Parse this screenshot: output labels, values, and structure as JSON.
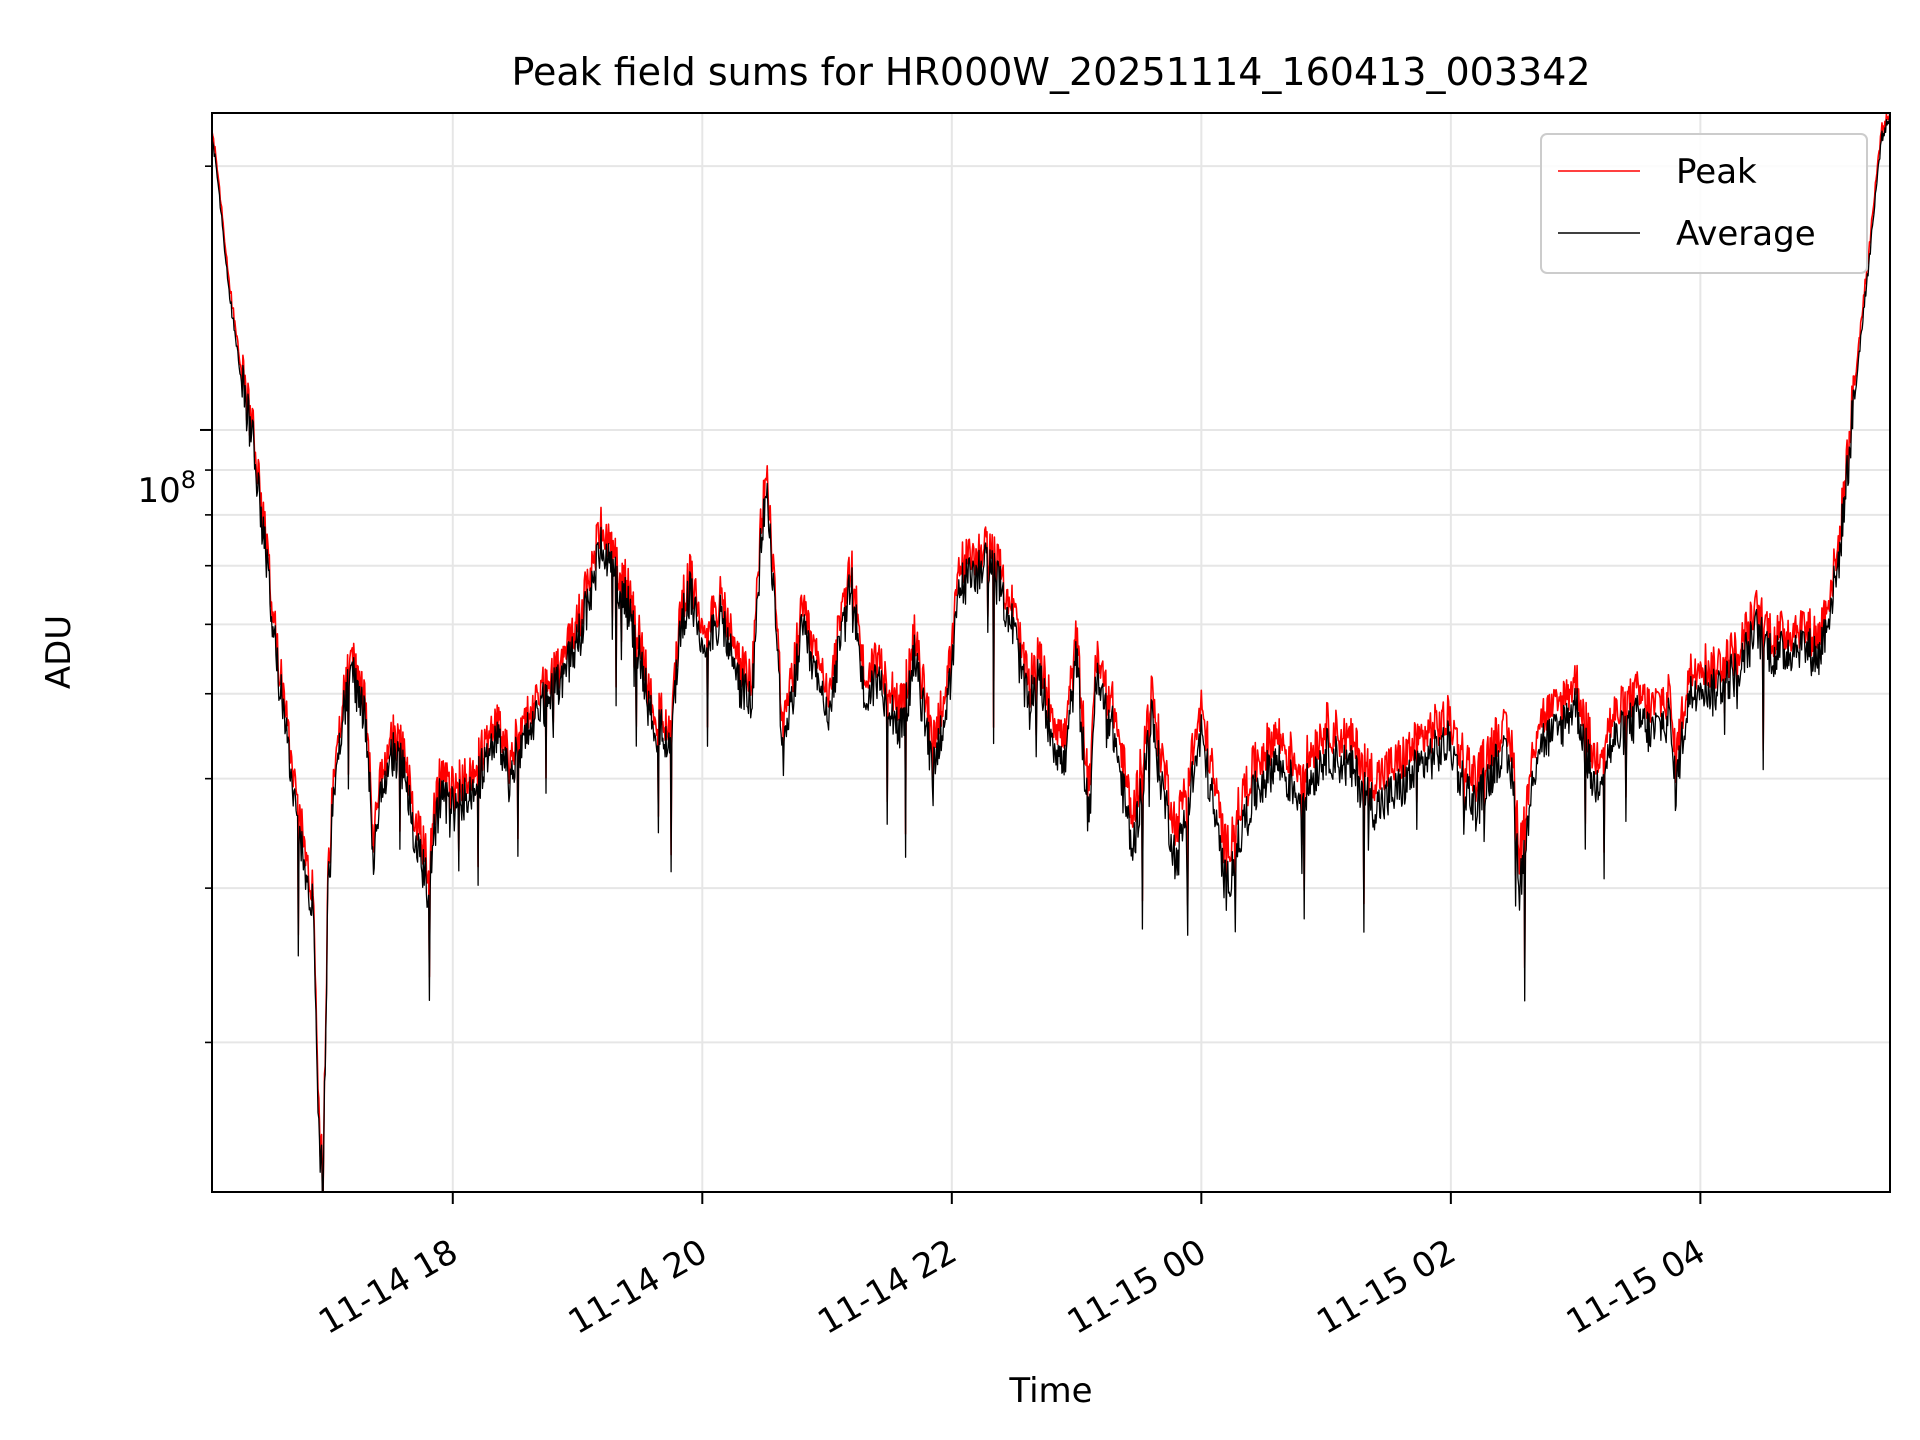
{
  "chart_data": {
    "type": "line",
    "title": "Peak field sums for HR000W_20251114_160413_003342",
    "xlabel": "Time",
    "ylabel": "ADU",
    "y_scale": "log",
    "ylim": [
      13500000,
      230000000
    ],
    "xlim_hours": [
      16.07,
      29.52
    ],
    "y_major_tick": {
      "value": 100000000,
      "label_base": "10",
      "label_exp": "8"
    },
    "y_minor_ticks": [
      20000000,
      30000000,
      40000000,
      50000000,
      60000000,
      70000000,
      80000000,
      90000000,
      200000000
    ],
    "x_ticks": [
      {
        "hour": 18,
        "label": "11-14 18"
      },
      {
        "hour": 20,
        "label": "11-14 20"
      },
      {
        "hour": 22,
        "label": "11-14 22"
      },
      {
        "hour": 24,
        "label": "11-15 00"
      },
      {
        "hour": 26,
        "label": "11-15 02"
      },
      {
        "hour": 28,
        "label": "11-15 04"
      }
    ],
    "grid": true,
    "legend_position": "top-right",
    "x_units": "hours since 11-14 00:00",
    "series": [
      {
        "name": "Peak",
        "color": "#ff0000",
        "x": [
          16.07,
          16.13,
          16.2,
          16.3,
          16.4,
          16.5,
          16.6,
          16.68,
          16.75,
          16.82,
          16.88,
          16.92,
          16.96,
          17.0,
          17.05,
          17.12,
          17.2,
          17.3,
          17.37,
          17.42,
          17.5,
          17.6,
          17.7,
          17.8,
          17.85,
          17.9,
          18.0,
          18.15,
          18.25,
          18.35,
          18.45,
          18.6,
          18.7,
          18.8,
          19.0,
          19.2,
          19.4,
          19.5,
          19.6,
          19.75,
          19.82,
          19.9,
          20.0,
          20.15,
          20.3,
          20.4,
          20.48,
          20.52,
          20.6,
          20.65,
          20.8,
          21.0,
          21.2,
          21.3,
          21.4,
          21.5,
          21.6,
          21.7,
          21.85,
          22.0,
          22.05,
          22.2,
          22.3,
          22.4,
          22.5,
          22.6,
          22.7,
          22.8,
          22.9,
          23.0,
          23.1,
          23.15,
          23.3,
          23.45,
          23.6,
          23.65,
          23.8,
          24.0,
          24.2,
          24.35,
          24.45,
          24.6,
          24.8,
          25.0,
          25.2,
          25.4,
          25.6,
          25.8,
          26.0,
          26.05,
          26.2,
          26.4,
          26.5,
          26.55,
          26.7,
          26.85,
          27.0,
          27.15,
          27.3,
          27.5,
          27.6,
          27.75,
          27.8,
          27.9,
          28.0,
          28.1,
          28.2,
          28.3,
          28.45,
          28.6,
          28.8,
          28.95,
          29.1,
          29.2,
          29.22,
          29.35,
          29.45,
          29.52
        ],
        "values": [
          220000000,
          190000000,
          150000000,
          118000000,
          100000000,
          75000000,
          55000000,
          45000000,
          38000000,
          33000000,
          30000000,
          17000000,
          14000000,
          30000000,
          42000000,
          50000000,
          55000000,
          48000000,
          34000000,
          40000000,
          45000000,
          43000000,
          36000000,
          32000000,
          37000000,
          40000000,
          39000000,
          41000000,
          43000000,
          46000000,
          42000000,
          48000000,
          50000000,
          52000000,
          60000000,
          78000000,
          66000000,
          58000000,
          48000000,
          46000000,
          62000000,
          68000000,
          60000000,
          64000000,
          54000000,
          52000000,
          82000000,
          88000000,
          60000000,
          45000000,
          62000000,
          50000000,
          70000000,
          52000000,
          55000000,
          52000000,
          48000000,
          58000000,
          44000000,
          55000000,
          70000000,
          72000000,
          74000000,
          68000000,
          62000000,
          52000000,
          55000000,
          48000000,
          44000000,
          58000000,
          38000000,
          55000000,
          48000000,
          36000000,
          50000000,
          45000000,
          35000000,
          48000000,
          33000000,
          39000000,
          42000000,
          45000000,
          41000000,
          46000000,
          44000000,
          40000000,
          42000000,
          45000000,
          47000000,
          44000000,
          40000000,
          46000000,
          43000000,
          33000000,
          47000000,
          48000000,
          52000000,
          42000000,
          47000000,
          50000000,
          48000000,
          50000000,
          42000000,
          52000000,
          55000000,
          53000000,
          55000000,
          56000000,
          62000000,
          58000000,
          60000000,
          58000000,
          72000000,
          100000000,
          108000000,
          160000000,
          220000000,
          230000000
        ]
      },
      {
        "name": "Average",
        "color": "#000000",
        "x": [
          16.07,
          16.13,
          16.2,
          16.3,
          16.4,
          16.5,
          16.6,
          16.68,
          16.75,
          16.82,
          16.88,
          16.92,
          16.96,
          17.0,
          17.05,
          17.12,
          17.2,
          17.3,
          17.37,
          17.42,
          17.5,
          17.6,
          17.7,
          17.8,
          17.85,
          17.9,
          18.0,
          18.15,
          18.25,
          18.35,
          18.45,
          18.6,
          18.7,
          18.8,
          19.0,
          19.2,
          19.4,
          19.5,
          19.6,
          19.75,
          19.82,
          19.9,
          20.0,
          20.15,
          20.3,
          20.4,
          20.48,
          20.52,
          20.6,
          20.65,
          20.8,
          21.0,
          21.2,
          21.3,
          21.4,
          21.5,
          21.6,
          21.7,
          21.85,
          22.0,
          22.05,
          22.2,
          22.3,
          22.4,
          22.5,
          22.6,
          22.7,
          22.8,
          22.9,
          23.0,
          23.1,
          23.15,
          23.3,
          23.45,
          23.6,
          23.65,
          23.8,
          24.0,
          24.2,
          24.35,
          24.45,
          24.6,
          24.8,
          25.0,
          25.2,
          25.4,
          25.6,
          25.8,
          26.0,
          26.05,
          26.2,
          26.4,
          26.5,
          26.55,
          26.7,
          26.85,
          27.0,
          27.15,
          27.3,
          27.5,
          27.6,
          27.75,
          27.8,
          27.9,
          28.0,
          28.1,
          28.2,
          28.3,
          28.45,
          28.6,
          28.8,
          28.95,
          29.1,
          29.2,
          29.22,
          29.35,
          29.45,
          29.52
        ],
        "values": [
          216000000,
          186000000,
          146000000,
          115000000,
          97000000,
          72000000,
          53000000,
          43000000,
          36000000,
          31000000,
          29000000,
          16000000,
          13800000,
          29000000,
          40000000,
          48000000,
          53000000,
          46000000,
          32000000,
          38000000,
          43000000,
          41000000,
          34000000,
          30000000,
          35000000,
          38000000,
          37000000,
          39000000,
          41000000,
          44000000,
          40000000,
          46000000,
          48000000,
          50000000,
          57000000,
          74000000,
          63000000,
          55000000,
          46000000,
          44000000,
          59000000,
          65000000,
          57000000,
          61000000,
          51000000,
          49000000,
          78000000,
          84000000,
          57000000,
          42000000,
          59000000,
          47000000,
          67000000,
          49000000,
          52000000,
          49000000,
          45000000,
          55000000,
          41000000,
          52000000,
          66000000,
          69000000,
          71000000,
          65000000,
          59000000,
          49000000,
          52000000,
          45000000,
          41000000,
          55000000,
          35000000,
          52000000,
          45000000,
          33000000,
          47000000,
          42000000,
          32000000,
          45000000,
          30000000,
          36000000,
          39000000,
          42000000,
          38000000,
          43000000,
          41000000,
          37000000,
          39000000,
          42000000,
          44000000,
          41000000,
          37000000,
          43000000,
          40000000,
          30000000,
          44000000,
          45000000,
          49000000,
          39000000,
          44000000,
          47000000,
          45000000,
          47000000,
          39000000,
          49000000,
          52000000,
          50000000,
          52000000,
          53000000,
          59000000,
          55000000,
          57000000,
          55000000,
          69000000,
          96000000,
          104000000,
          155000000,
          215000000,
          228000000
        ]
      }
    ]
  }
}
